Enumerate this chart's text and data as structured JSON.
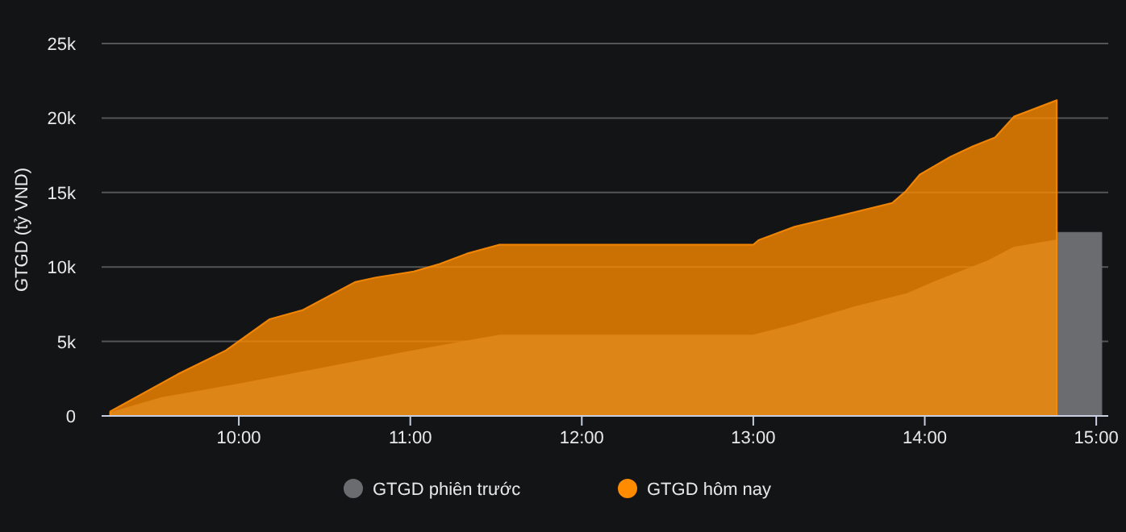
{
  "chart_data": {
    "type": "area",
    "ylabel": "GTGD (tỷ VND)",
    "xlim": [
      9.2,
      15.07
    ],
    "xticks": [
      {
        "value": 10,
        "label": "10:00"
      },
      {
        "value": 11,
        "label": "11:00"
      },
      {
        "value": 12,
        "label": "12:00"
      },
      {
        "value": 13,
        "label": "13:00"
      },
      {
        "value": 14,
        "label": "14:00"
      },
      {
        "value": 15,
        "label": "15:00"
      }
    ],
    "ylim": [
      0,
      25000
    ],
    "yticks": [
      0,
      {
        "value": 5000,
        "label": "5k"
      },
      {
        "value": 10000,
        "label": "10k"
      },
      {
        "value": 15000,
        "label": "15k"
      },
      {
        "value": 20000,
        "label": "20k"
      },
      {
        "value": 25000,
        "label": "25k"
      }
    ],
    "grid": "y",
    "legend": "bottom",
    "series": [
      {
        "name": "GTGD phiên trước",
        "color": "#6b6c70",
        "x": [
          9.25,
          9.55,
          9.99,
          10.49,
          10.99,
          11.52,
          13.0,
          13.24,
          13.59,
          13.9,
          14.06,
          14.37,
          14.52,
          14.77,
          14.77,
          15.03
        ],
        "values": [
          200,
          1200,
          2100,
          3200,
          4300,
          5400,
          5400,
          6100,
          7300,
          8200,
          9000,
          10400,
          11300,
          11800,
          12300,
          12300
        ]
      },
      {
        "name": "GTGD hôm nay",
        "color": "#ff8c00",
        "x": [
          9.25,
          9.455,
          9.643,
          9.925,
          10.18,
          10.37,
          10.68,
          10.8,
          11.02,
          11.17,
          11.33,
          11.52,
          13.0,
          13.03,
          13.24,
          13.56,
          13.81,
          13.89,
          13.97,
          14.15,
          14.28,
          14.41,
          14.52,
          14.77
        ],
        "values": [
          300,
          1600,
          2800,
          4400,
          6500,
          7100,
          9000,
          9300,
          9700,
          10200,
          10900,
          11500,
          11500,
          11800,
          12700,
          13600,
          14300,
          15100,
          16200,
          17400,
          18100,
          18700,
          20100,
          21200
        ]
      }
    ]
  }
}
